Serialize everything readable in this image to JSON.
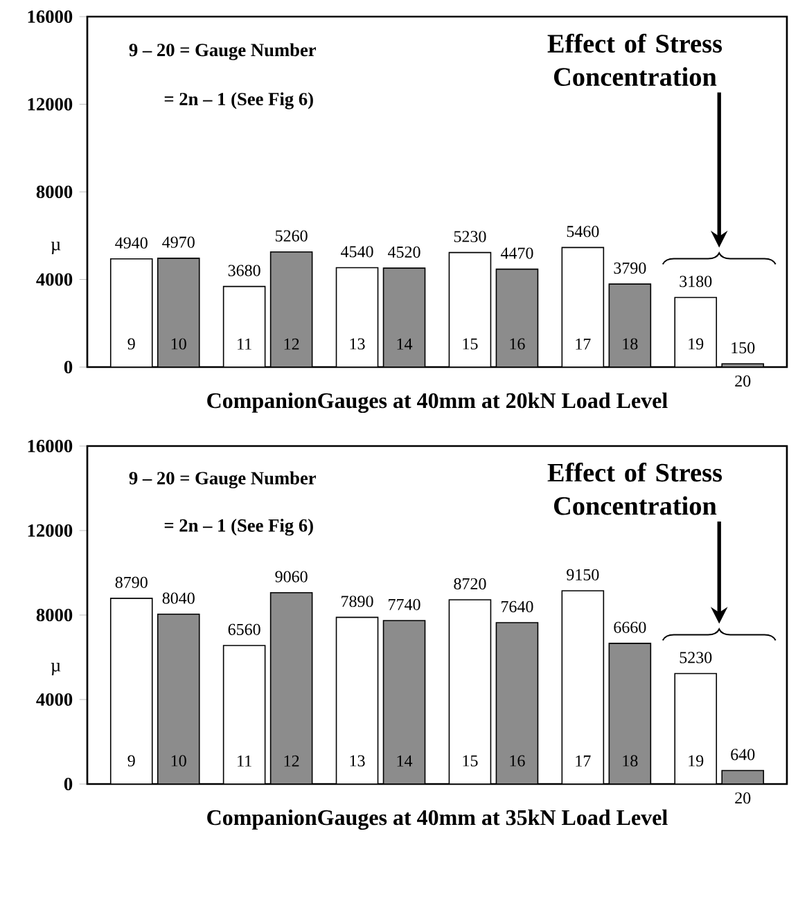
{
  "chart_data": [
    {
      "type": "bar",
      "categories": [
        null,
        null,
        null,
        null,
        null,
        null
      ],
      "series": [
        {
          "color": "#ffffff",
          "values": [
            4940,
            3680,
            4540,
            5230,
            5460,
            3180
          ]
        },
        {
          "color": "#8c8c8c",
          "values": [
            4970,
            5260,
            4520,
            4470,
            3790,
            150
          ]
        }
      ],
      "ylim": [
        0,
        16000
      ],
      "yticks": [
        0,
        4000,
        8000,
        12000,
        16000
      ],
      "ylabel": "µ",
      "xlabel": "CompanionGauges at 40mm at 20kN Load Level",
      "data_labels": true,
      "tick_labels": "y",
      "annotations": [
        "9 – 20 = Gauge Number",
        "= 2n – 1 (See Fig 6)",
        "Effect of Stress Concentration",
        "9",
        "10",
        "11",
        "12",
        "13",
        "14",
        "15",
        "16",
        "17",
        "18",
        "19",
        "20"
      ]
    },
    {
      "type": "bar",
      "categories": [
        null,
        null,
        null,
        null,
        null,
        null
      ],
      "series": [
        {
          "color": "#ffffff",
          "values": [
            8790,
            6560,
            7890,
            8720,
            9150,
            5230
          ]
        },
        {
          "color": "#8c8c8c",
          "values": [
            8040,
            9060,
            7740,
            7640,
            6660,
            640
          ]
        }
      ],
      "ylim": [
        0,
        16000
      ],
      "yticks": [
        0,
        4000,
        8000,
        12000,
        16000
      ],
      "ylabel": "µ",
      "xlabel": "CompanionGauges at 40mm at 35kN Load Level",
      "data_labels": true,
      "tick_labels": "y",
      "annotations": [
        "9 – 20 = Gauge Number",
        "= 2n – 1 (See Fig 6)",
        "Effect of Stress Concentration",
        "9",
        "10",
        "11",
        "12",
        "13",
        "14",
        "15",
        "16",
        "17",
        "18",
        "19",
        "20"
      ]
    }
  ]
}
